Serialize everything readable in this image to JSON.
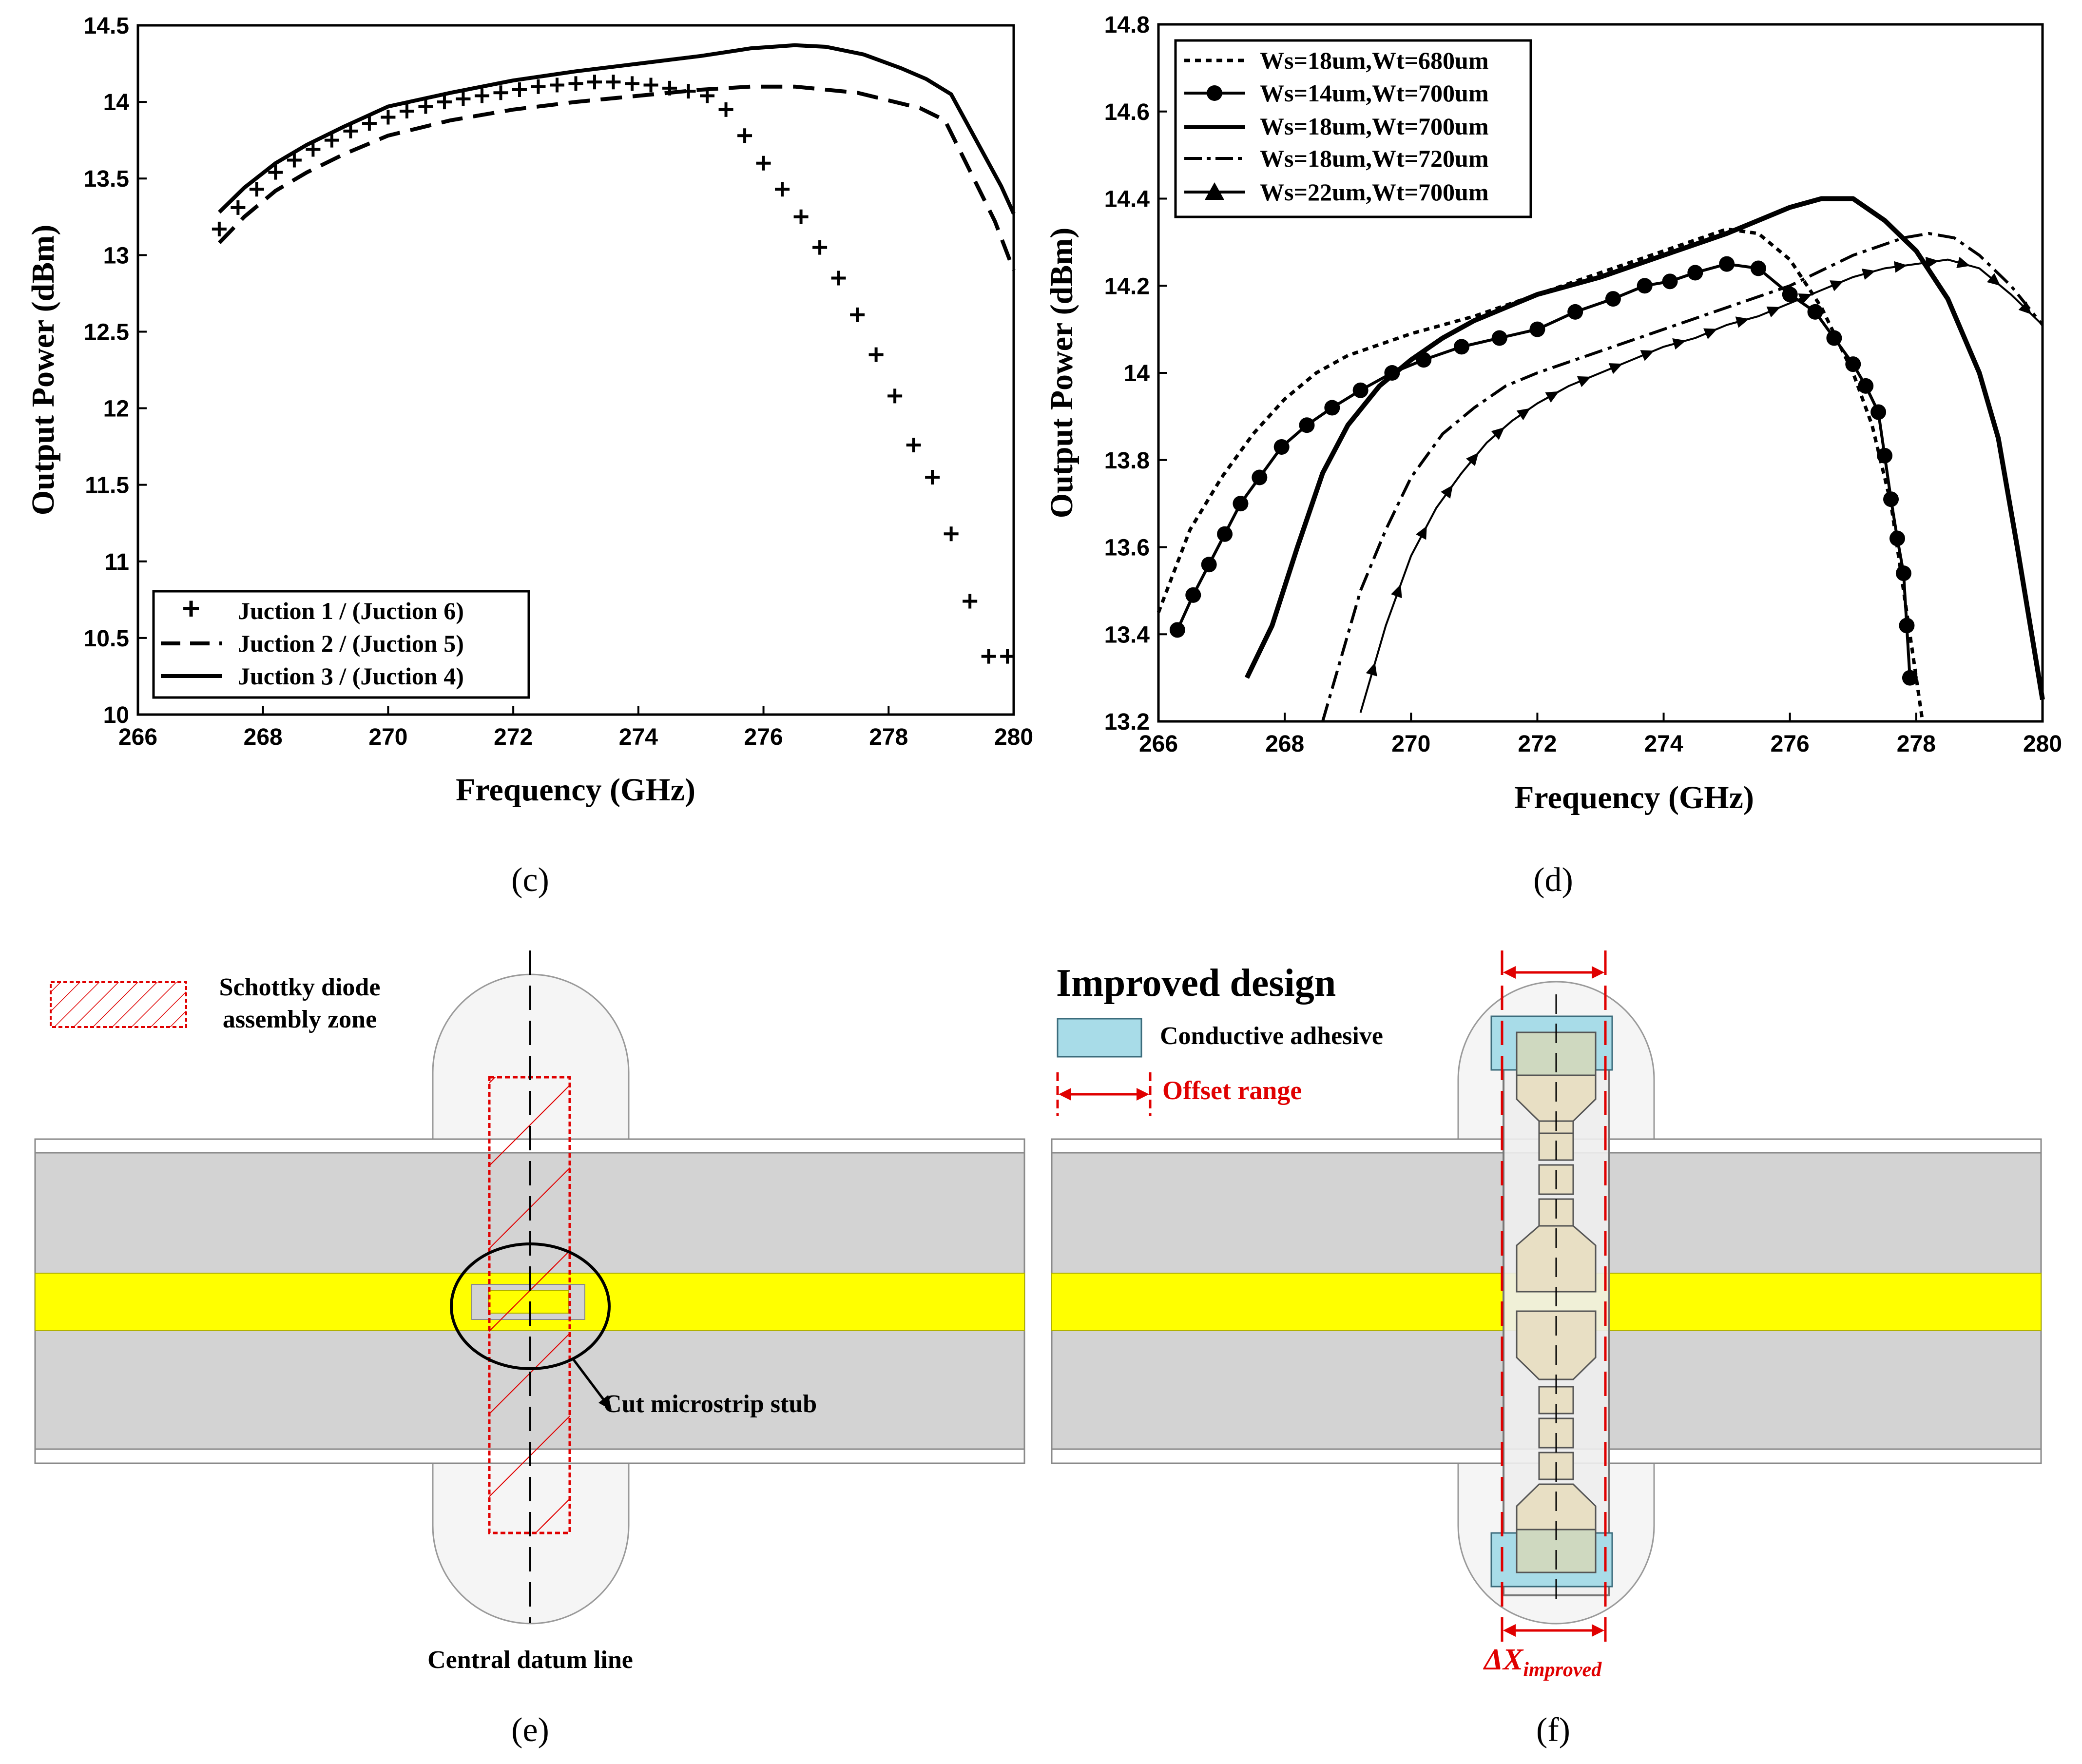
{
  "chart_data": [
    {
      "panel": "(c)",
      "type": "line",
      "xlabel": "Frequency (GHz)",
      "ylabel": "Output Power (dBm)",
      "xlim": [
        266,
        280
      ],
      "ylim": [
        10,
        14.5
      ],
      "xticks": [
        "266",
        "268",
        "270",
        "272",
        "274",
        "276",
        "278",
        "280"
      ],
      "yticks": [
        "10",
        "10.5",
        "11",
        "11.5",
        "12",
        "12.5",
        "13",
        "13.5",
        "14",
        "14.5"
      ],
      "legend_position": "bottom-left",
      "series": [
        {
          "name": "Juction 1 / (Juction 6)",
          "style": "plus",
          "x": [
            267.3,
            267.6,
            267.9,
            268.2,
            268.5,
            268.8,
            269.1,
            269.4,
            269.7,
            270.0,
            270.3,
            270.6,
            270.9,
            271.2,
            271.5,
            271.8,
            272.1,
            272.4,
            272.7,
            273.0,
            273.3,
            273.6,
            273.9,
            274.2,
            274.5,
            274.8,
            275.1,
            275.4,
            275.7,
            276.0,
            276.3,
            276.6,
            276.9,
            277.2,
            277.5,
            277.8,
            278.1,
            278.4,
            278.7,
            279.0,
            279.3,
            279.6,
            279.9
          ],
          "y": [
            13.17,
            13.31,
            13.43,
            13.54,
            13.62,
            13.69,
            13.75,
            13.81,
            13.86,
            13.9,
            13.94,
            13.97,
            14.0,
            14.02,
            14.04,
            14.06,
            14.08,
            14.1,
            14.11,
            14.12,
            14.13,
            14.13,
            14.12,
            14.11,
            14.09,
            14.07,
            14.04,
            13.95,
            13.78,
            13.6,
            13.43,
            13.25,
            13.05,
            12.85,
            12.61,
            12.35,
            12.08,
            11.76,
            11.55,
            11.18,
            10.74,
            10.38,
            10.38
          ]
        },
        {
          "name": "Juction 2 / (Juction 5)",
          "style": "dashed",
          "x": [
            267.3,
            267.7,
            268.2,
            268.7,
            269.3,
            270.0,
            271.0,
            272.0,
            273.0,
            274.0,
            275.0,
            275.8,
            276.5,
            277.5,
            278.5,
            278.9,
            279.3,
            279.7,
            280.0
          ],
          "y": [
            13.08,
            13.25,
            13.42,
            13.54,
            13.66,
            13.78,
            13.88,
            13.95,
            14.0,
            14.04,
            14.08,
            14.1,
            14.1,
            14.06,
            13.96,
            13.88,
            13.55,
            13.22,
            12.9
          ]
        },
        {
          "name": "Juction 3 / (Juction 4)",
          "style": "solid",
          "x": [
            267.3,
            267.7,
            268.2,
            268.7,
            269.3,
            270.0,
            271.0,
            272.0,
            273.0,
            274.0,
            275.0,
            275.8,
            276.5,
            277.0,
            277.6,
            278.2,
            278.6,
            279.0,
            279.4,
            279.8,
            280.0
          ],
          "y": [
            13.28,
            13.44,
            13.6,
            13.72,
            13.84,
            13.97,
            14.06,
            14.14,
            14.2,
            14.25,
            14.3,
            14.35,
            14.37,
            14.36,
            14.31,
            14.22,
            14.15,
            14.05,
            13.75,
            13.45,
            13.27
          ]
        }
      ]
    },
    {
      "panel": "(d)",
      "type": "line",
      "xlabel": "Frequency (GHz)",
      "ylabel": "Output Power (dBm)",
      "xlim": [
        266,
        280
      ],
      "ylim": [
        13.2,
        14.8
      ],
      "xticks": [
        "266",
        "268",
        "270",
        "272",
        "274",
        "276",
        "278",
        "280"
      ],
      "yticks": [
        "13.2",
        "13.4",
        "13.6",
        "13.8",
        "14",
        "14.2",
        "14.4",
        "14.6",
        "14.8"
      ],
      "legend_position": "top-left",
      "series": [
        {
          "name": "Ws=18um,Wt=680um",
          "style": "dotted",
          "x": [
            266.0,
            266.5,
            267.0,
            267.5,
            268.0,
            268.5,
            269.0,
            270.0,
            271.0,
            272.0,
            273.0,
            274.0,
            274.6,
            275.0,
            275.5,
            276.0,
            276.5,
            277.0,
            277.3,
            277.6,
            277.8,
            278.0,
            278.1
          ],
          "y": [
            13.45,
            13.64,
            13.76,
            13.86,
            13.94,
            14.0,
            14.04,
            14.09,
            14.13,
            14.18,
            14.23,
            14.28,
            14.31,
            14.33,
            14.32,
            14.26,
            14.15,
            14.0,
            13.88,
            13.7,
            13.5,
            13.3,
            13.2
          ]
        },
        {
          "name": "Ws=14um,Wt=700um",
          "style": "solid-dot",
          "x": [
            266.3,
            266.55,
            266.8,
            267.05,
            267.3,
            267.6,
            267.95,
            268.35,
            268.75,
            269.2,
            269.7,
            270.2,
            270.8,
            271.4,
            272.0,
            272.6,
            273.2,
            273.7,
            274.1,
            274.5,
            275.0,
            275.5,
            276.0,
            276.4,
            276.7,
            277.0,
            277.2,
            277.4,
            277.5,
            277.6,
            277.7,
            277.8,
            277.85,
            277.9
          ],
          "y": [
            13.41,
            13.49,
            13.56,
            13.63,
            13.7,
            13.76,
            13.83,
            13.88,
            13.92,
            13.96,
            14.0,
            14.03,
            14.06,
            14.08,
            14.1,
            14.14,
            14.17,
            14.2,
            14.21,
            14.23,
            14.25,
            14.24,
            14.18,
            14.14,
            14.08,
            14.02,
            13.97,
            13.91,
            13.81,
            13.71,
            13.62,
            13.54,
            13.42,
            13.3
          ]
        },
        {
          "name": "Ws=18um,Wt=700um",
          "style": "solid-thick",
          "x": [
            267.4,
            267.8,
            268.2,
            268.6,
            269.0,
            269.5,
            270.0,
            270.5,
            271.0,
            271.5,
            272.0,
            273.0,
            274.0,
            275.0,
            275.5,
            276.0,
            276.5,
            277.0,
            277.5,
            278.0,
            278.5,
            279.0,
            279.3,
            279.6,
            280.0
          ],
          "y": [
            13.3,
            13.42,
            13.6,
            13.77,
            13.88,
            13.97,
            14.03,
            14.08,
            14.12,
            14.15,
            14.18,
            14.22,
            14.27,
            14.32,
            14.35,
            14.38,
            14.4,
            14.4,
            14.35,
            14.28,
            14.17,
            14.0,
            13.85,
            13.6,
            13.25
          ]
        },
        {
          "name": "Ws=18um,Wt=720um",
          "style": "dash-dot",
          "x": [
            268.6,
            268.9,
            269.2,
            269.6,
            270.0,
            270.5,
            271.0,
            271.5,
            272.0,
            273.0,
            274.0,
            275.0,
            276.0,
            277.0,
            277.8,
            278.2,
            278.6,
            279.0,
            279.5,
            280.0
          ],
          "y": [
            13.2,
            13.35,
            13.5,
            13.64,
            13.76,
            13.86,
            13.92,
            13.97,
            14.0,
            14.05,
            14.1,
            14.15,
            14.2,
            14.27,
            14.31,
            14.32,
            14.31,
            14.27,
            14.2,
            14.11
          ]
        },
        {
          "name": "Ws=22um,Wt=700um",
          "style": "solid-triangle",
          "x": [
            269.2,
            269.6,
            270.0,
            270.4,
            270.8,
            271.2,
            271.6,
            272.0,
            272.5,
            273.0,
            273.5,
            274.0,
            274.5,
            275.0,
            275.5,
            276.0,
            276.5,
            277.0,
            277.5,
            278.0,
            278.5,
            279.0,
            279.5,
            280.0
          ],
          "y": [
            13.22,
            13.42,
            13.58,
            13.69,
            13.77,
            13.84,
            13.89,
            13.93,
            13.97,
            14.0,
            14.03,
            14.06,
            14.08,
            14.11,
            14.13,
            14.16,
            14.19,
            14.22,
            14.24,
            14.25,
            14.26,
            14.24,
            14.18,
            14.11
          ]
        }
      ]
    }
  ],
  "panels": {
    "c_label": "(c)",
    "d_label": "(d)",
    "e_label": "(e)",
    "f_label": "(f)"
  },
  "diagram_e": {
    "legend_line1": "Schottky diode",
    "legend_line2": "assembly zone",
    "callout": "Cut microstrip stub",
    "datum_label": "Central datum line"
  },
  "diagram_f": {
    "title": "Improved design",
    "adhesive_label": "Conductive adhesive",
    "offset_label": "Offset range",
    "delta_main": "ΔX",
    "delta_sub": "improved"
  },
  "colors": {
    "substrate": "#d3d3d3",
    "microstrip": "#ffff00",
    "zone_red": "#e00000",
    "adhesive": "#a8dce8",
    "diode_fill": "#e8dfc4"
  }
}
